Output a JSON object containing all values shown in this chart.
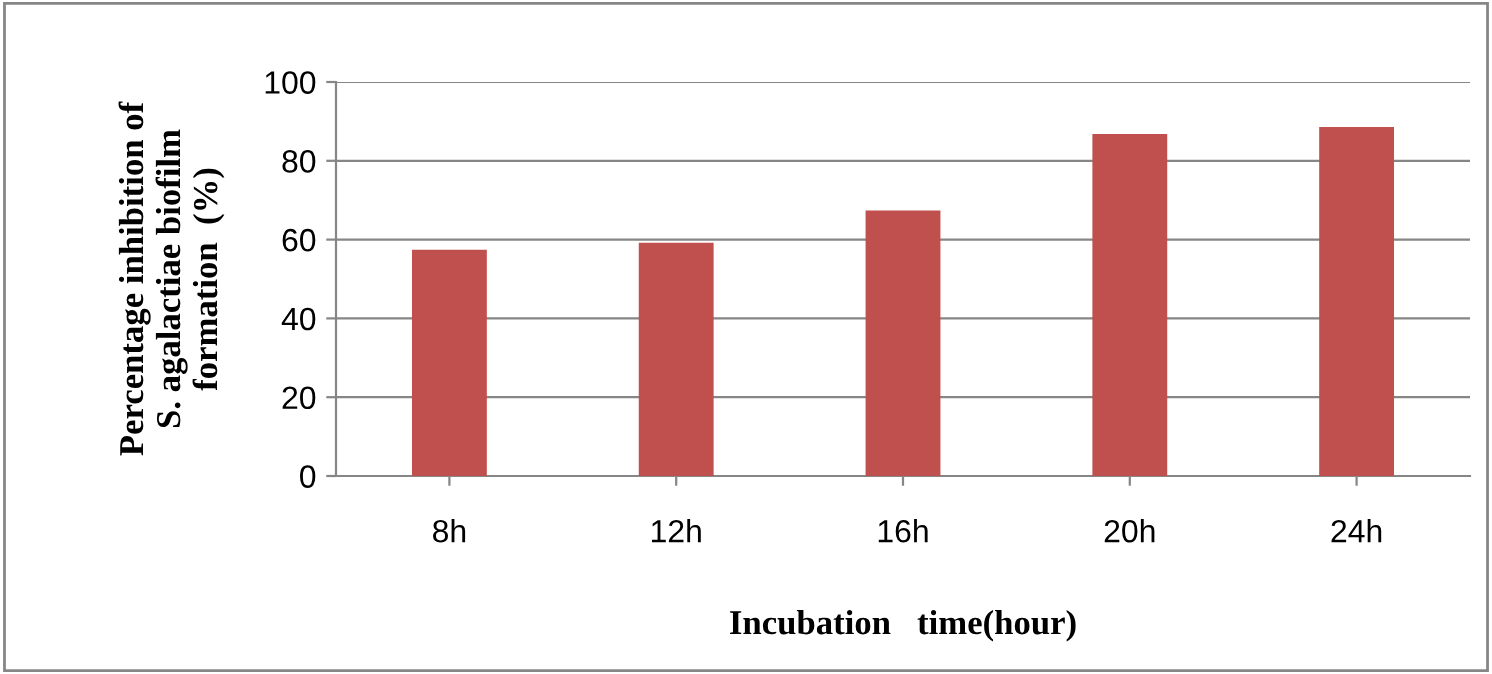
{
  "chart_data": {
    "type": "bar",
    "xlabel": "Incubation   time(hour)",
    "ylabel": "Percentage inhibition of\nS. agalactiae biofilm\nformation  (%)",
    "categories": [
      "8h",
      "12h",
      "16h",
      "20h",
      "24h"
    ],
    "values": [
      57.4,
      59.2,
      67.4,
      86.8,
      88.6
    ],
    "color": "#c0504d",
    "ylim": [
      0,
      100
    ],
    "yticks": [
      0,
      20,
      40,
      60,
      80,
      100
    ],
    "grid": "y",
    "legend": false
  }
}
